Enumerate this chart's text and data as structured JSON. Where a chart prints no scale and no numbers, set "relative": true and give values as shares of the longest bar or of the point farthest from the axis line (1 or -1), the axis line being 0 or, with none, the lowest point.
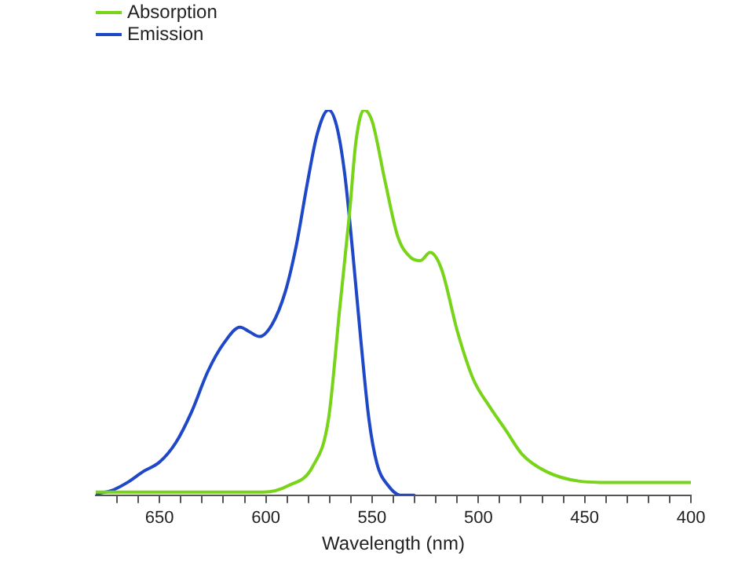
{
  "chart_data": {
    "type": "line",
    "xlabel": "Wavelength (nm)",
    "relative": true,
    "legend": "top left",
    "marker": "none",
    "line_style": "solid",
    "grid": false,
    "xlim": [
      680,
      400
    ],
    "xticks": [
      400,
      {
        "value": 410,
        "label": null
      },
      {
        "value": 420,
        "label": null
      },
      {
        "value": 430,
        "label": null
      },
      {
        "value": 440,
        "label": null
      },
      450,
      {
        "value": 460,
        "label": null
      },
      {
        "value": 470,
        "label": null
      },
      {
        "value": 480,
        "label": null
      },
      {
        "value": 490,
        "label": null
      },
      500,
      {
        "value": 510,
        "label": null
      },
      {
        "value": 520,
        "label": null
      },
      {
        "value": 530,
        "label": null
      },
      {
        "value": 540,
        "label": null
      },
      550,
      {
        "value": 560,
        "label": null
      },
      {
        "value": 570,
        "label": null
      },
      {
        "value": 580,
        "label": null
      },
      {
        "value": 590,
        "label": null
      },
      600,
      {
        "value": 610,
        "label": null
      },
      {
        "value": 620,
        "label": null
      },
      {
        "value": 630,
        "label": null
      },
      {
        "value": 640,
        "label": null
      },
      650,
      {
        "value": 660,
        "label": null
      },
      {
        "value": 670,
        "label": null
      }
    ],
    "series": [
      {
        "name": "Absorption",
        "color": "#77d419",
        "x": [
          680,
          601,
          589.4,
          578,
          570.5,
          565.2,
          560.6,
          557.6,
          553.8,
          550,
          543.9,
          537.9,
          531.8,
          527.3,
          522.7,
          517.4,
          509.8,
          502.3,
          494.7,
          487.1,
          479.5,
          468.2,
          453,
          437.9,
          400
        ],
        "values": [
          0.008,
          0.008,
          0.025,
          0.074,
          0.198,
          0.486,
          0.733,
          0.918,
          1,
          0.971,
          0.815,
          0.671,
          0.617,
          0.609,
          0.63,
          0.588,
          0.424,
          0.3,
          0.23,
          0.169,
          0.107,
          0.062,
          0.037,
          0.033,
          0.033
        ]
      },
      {
        "name": "Emission",
        "color": "#1f48c8",
        "x": [
          680,
          672.7,
          665.2,
          657.6,
          650,
          642.4,
          634.8,
          627.3,
          619.7,
          612.1,
          607.6,
          603,
          597,
          590.9,
          585.6,
          580.3,
          575.8,
          570.5,
          566.7,
          562.9,
          559.1,
          555.3,
          551.5,
          547.7,
          542.4,
          536.4,
          530.3
        ],
        "values": [
          0.004,
          0.012,
          0.033,
          0.062,
          0.086,
          0.136,
          0.218,
          0.321,
          0.395,
          0.436,
          0.424,
          0.412,
          0.444,
          0.527,
          0.65,
          0.815,
          0.938,
          1,
          0.959,
          0.835,
          0.63,
          0.403,
          0.198,
          0.082,
          0.025,
          0,
          0
        ]
      }
    ]
  }
}
